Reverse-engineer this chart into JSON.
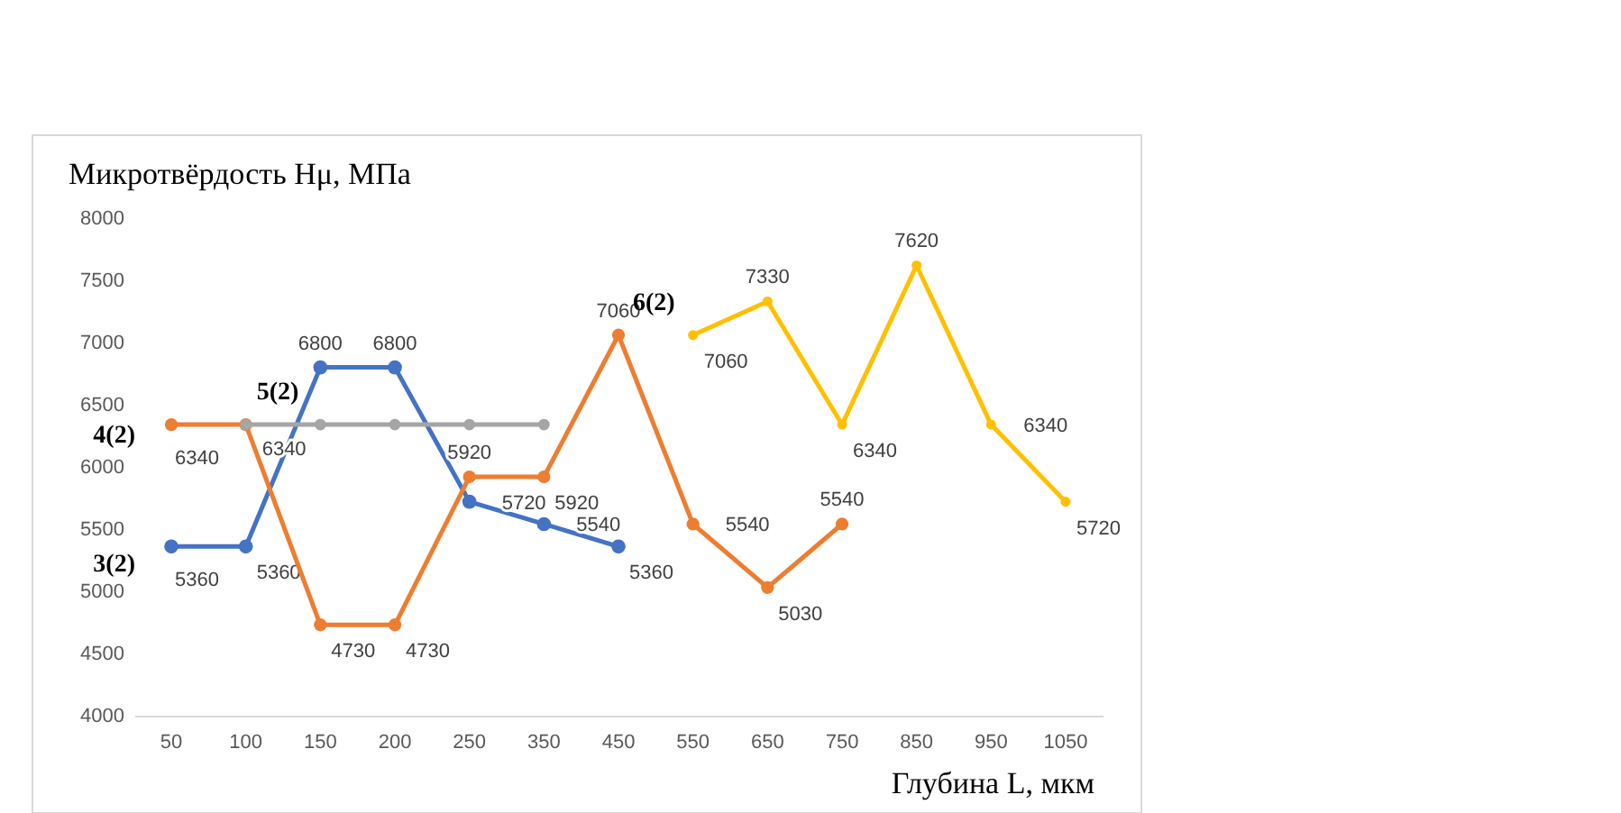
{
  "chart_data": {
    "type": "line",
    "title": "Микротвёрдость Hμ, МПа",
    "xlabel": "Глубина L, мкм",
    "categories": [
      "50",
      "100",
      "150",
      "200",
      "250",
      "350",
      "450",
      "550",
      "650",
      "750",
      "850",
      "950",
      "1050"
    ],
    "ylim": [
      4000,
      8000
    ],
    "yticks": [
      4000,
      4500,
      5000,
      5500,
      6000,
      6500,
      7000,
      7500,
      8000
    ],
    "grid": false,
    "marker": "circle",
    "line_style": "solid",
    "series": [
      {
        "name": "3(2)",
        "color": "#4472c4",
        "values": [
          5360,
          5360,
          6800,
          6800,
          5720,
          5540,
          5360,
          null,
          null,
          null,
          null,
          null,
          null
        ],
        "value_labels": [
          "5360",
          "5360",
          "6800",
          "6800",
          "5720",
          "5540",
          "5360",
          null,
          null,
          null,
          null,
          null,
          null
        ]
      },
      {
        "name": "4(2)",
        "color": "#ed7d31",
        "values": [
          6340,
          6340,
          4730,
          4730,
          5920,
          5920,
          7060,
          5540,
          5030,
          5540,
          null,
          null,
          null
        ],
        "value_labels": [
          "6340",
          null,
          "4730",
          "4730",
          "5920",
          "5920",
          "7060",
          "5540",
          "5030",
          "5540",
          null,
          null,
          null
        ]
      },
      {
        "name": "5(2)",
        "color": "#a5a5a5",
        "values": [
          null,
          6340,
          6340,
          6340,
          6340,
          6340,
          null,
          null,
          null,
          null,
          null,
          null,
          null
        ],
        "value_labels": [
          null,
          "6340",
          null,
          null,
          null,
          null,
          null,
          null,
          null,
          null,
          null,
          null,
          null
        ]
      },
      {
        "name": "6(2)",
        "color": "#ffc000",
        "values": [
          null,
          null,
          null,
          null,
          null,
          null,
          null,
          7060,
          7330,
          6340,
          7620,
          6340,
          5720
        ],
        "value_labels": [
          null,
          null,
          null,
          null,
          null,
          null,
          null,
          "7060",
          "7330",
          "6340",
          "7620",
          "6340",
          "5720"
        ]
      }
    ]
  }
}
